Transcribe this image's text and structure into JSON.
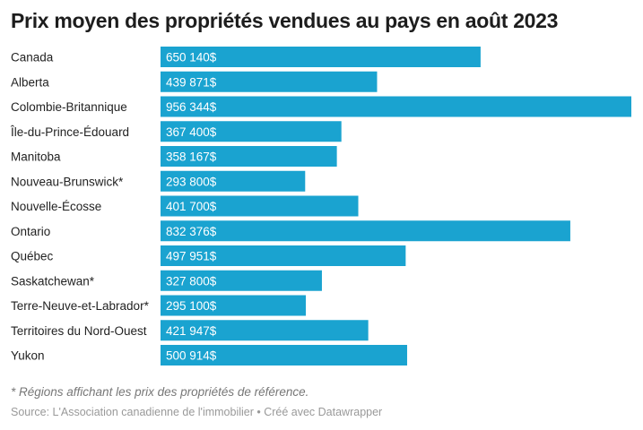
{
  "chart_data": {
    "type": "bar",
    "orientation": "horizontal",
    "title": "Prix moyen des propriétés vendues au pays en août 2023",
    "categories": [
      "Canada",
      "Alberta",
      "Colombie-Britannique",
      "Île-du-Prince-Édouard",
      "Manitoba",
      "Nouveau-Brunswick*",
      "Nouvelle-Écosse",
      "Ontario",
      "Québec",
      "Saskatchewan*",
      "Terre-Neuve-et-Labrador*",
      "Territoires du Nord-Ouest",
      "Yukon"
    ],
    "values": [
      650140,
      439871,
      956344,
      367400,
      358167,
      293800,
      401700,
      832376,
      497951,
      327800,
      295100,
      421947,
      500914
    ],
    "labels": [
      "650 140$",
      "439 871$",
      "956 344$",
      "367 400$",
      "358 167$",
      "293 800$",
      "401 700$",
      "832 376$",
      "497 951$",
      "327 800$",
      "295 100$",
      "421 947$",
      "500 914$"
    ],
    "xlim": [
      0,
      956344
    ],
    "grid": false,
    "bar_color": "#1aa3d0",
    "label_color": "#ffffff"
  },
  "footnote": "* Régions affichant les prix des propriétés de référence.",
  "source": "Source: L'Association canadienne de l'immobilier • Créé avec Datawrapper"
}
